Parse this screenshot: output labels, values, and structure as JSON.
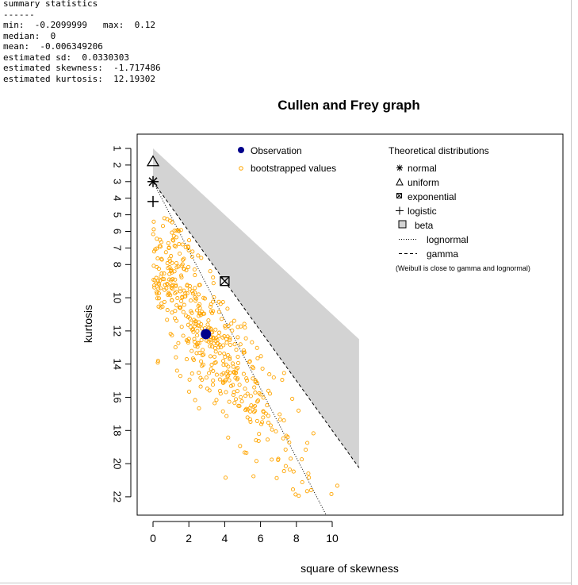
{
  "console": {
    "lines": [
      "summary statistics",
      "------",
      "min:  -0.2099999   max:  0.12",
      "median:  0",
      "mean:  -0.006349206",
      "estimated sd:  0.0330303",
      "estimated skewness:  -1.717486",
      "estimated kurtosis:  12.19302"
    ]
  },
  "chart_data": {
    "type": "scatter",
    "title": "Cullen and Frey graph",
    "xlabel": "square of skewness",
    "ylabel": "kurtosis",
    "xlim": [
      0,
      11.5
    ],
    "ylim": [
      1,
      23
    ],
    "y_reversed": true,
    "xticks": [
      0,
      2,
      4,
      6,
      8,
      10
    ],
    "yticks": [
      1,
      2,
      3,
      4,
      5,
      6,
      7,
      8,
      10,
      12,
      14,
      16,
      18,
      20,
      22
    ],
    "legend_observation": {
      "items": [
        {
          "label": "Observation",
          "symbol": "filled-circle",
          "color": "#00008b"
        },
        {
          "label": "bootstrapped values",
          "symbol": "open-circle",
          "color": "#ffa500"
        }
      ]
    },
    "legend_theoretical": {
      "title": "Theoretical distributions",
      "items": [
        {
          "label": "normal",
          "symbol": "asterisk"
        },
        {
          "label": "uniform",
          "symbol": "triangle"
        },
        {
          "label": "exponential",
          "symbol": "boxed-x"
        },
        {
          "label": "logistic",
          "symbol": "plus"
        },
        {
          "label": "beta",
          "symbol": "gray-square"
        },
        {
          "label": "lognormal",
          "symbol": "dotted-line"
        },
        {
          "label": "gamma",
          "symbol": "dashed-line"
        }
      ],
      "note": "(Weibull is close to gamma and lognormal)"
    },
    "observation": {
      "x": 2.95,
      "y": 12.19
    },
    "theoretical_points": {
      "normal": {
        "x": 0,
        "y": 3
      },
      "uniform": {
        "x": 0,
        "y": 1.8
      },
      "exponential": {
        "x": 4,
        "y": 9
      },
      "logistic": {
        "x": 0,
        "y": 4.2
      }
    },
    "beta_region": {
      "upper_line": {
        "slope": 1,
        "intercept": 1
      },
      "lower_line": {
        "slope": 1.5,
        "intercept": 3
      }
    },
    "gamma_line": {
      "slope": 1.5,
      "intercept": 3
    },
    "lognormal_line": {
      "slope": 2.08,
      "intercept": 3
    },
    "colors": {
      "beta_fill": "#d3d3d3",
      "observation": "#00008b",
      "bootstrap": "#ffa500"
    },
    "bootstrap_count": 500
  }
}
